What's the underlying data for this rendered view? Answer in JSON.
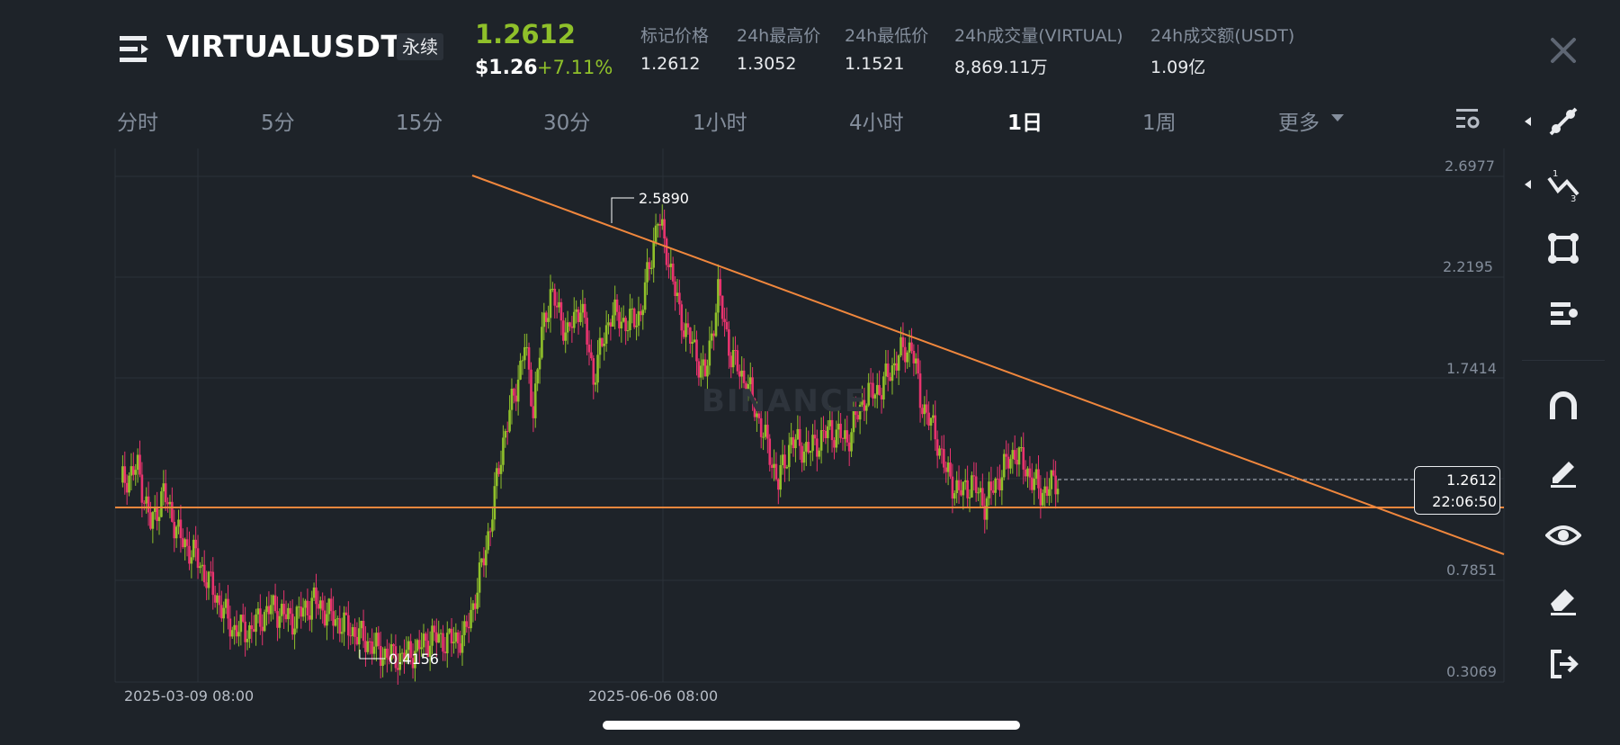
{
  "header": {
    "symbol": "VIRTUALUSDT",
    "contract_type": "永续",
    "last_price": "1.2612",
    "usd_price": "$1.26",
    "change_percent": "+7.11%",
    "stats": [
      {
        "label": "标记价格",
        "value": "1.2612"
      },
      {
        "label": "24h最高价",
        "value": "1.3052"
      },
      {
        "label": "24h最低价",
        "value": "1.1521"
      },
      {
        "label": "24h成交量(VIRTUAL)",
        "value": "8,869.11万"
      },
      {
        "label": "24h成交额(USDT)",
        "value": "1.09亿"
      }
    ]
  },
  "timeframes": [
    "分时",
    "5分",
    "15分",
    "30分",
    "1小时",
    "4小时",
    "1日",
    "1周",
    "更多"
  ],
  "active_timeframe": "1日",
  "chart": {
    "price_axis": [
      "2.6977",
      "2.2195",
      "1.7414",
      "1.2612",
      "0.7851",
      "0.3069"
    ],
    "date_axis": [
      "2025-03-09 08:00",
      "2025-06-06 08:00"
    ],
    "high_marker": "2.5890",
    "low_marker": "0.4156",
    "current_price": "1.2612",
    "countdown": "22:06:50",
    "watermark": "BINANCE",
    "up_color": "#8fc02a",
    "down_color": "#e8336e",
    "line_color": "#f0873d"
  },
  "toolbar": [
    "trend-line-icon",
    "fibonacci-icon",
    "shape-icon",
    "indicator-icon",
    "magnet-icon",
    "pencil-icon",
    "eye-icon",
    "eraser-icon",
    "exit-icon"
  ],
  "colors": {
    "background": "#1e2329",
    "accent_up": "#8fc02a",
    "accent_down": "#e8336e"
  }
}
